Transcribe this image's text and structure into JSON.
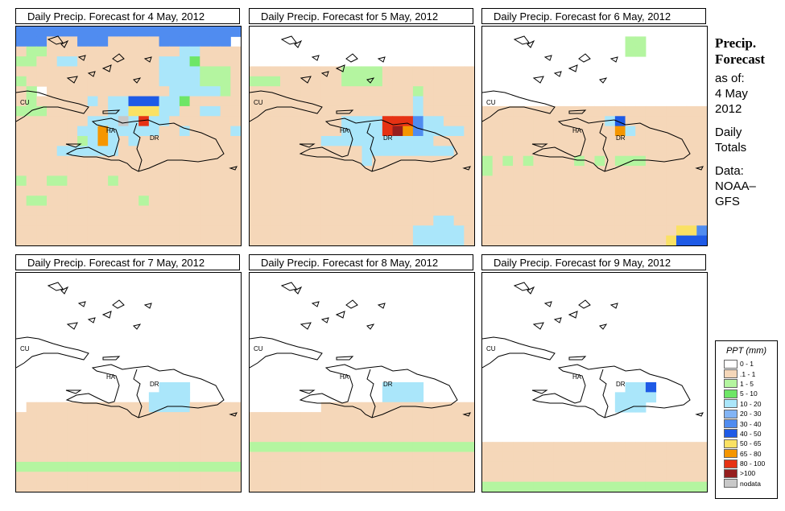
{
  "panels": [
    {
      "title": "Daily Precip. Forecast for  4 May, 2012"
    },
    {
      "title": "Daily Precip. Forecast for  5 May, 2012"
    },
    {
      "title": "Daily Precip. Forecast for  6 May, 2012"
    },
    {
      "title": "Daily Precip. Forecast for  7 May, 2012"
    },
    {
      "title": "Daily Precip. Forecast for  8 May, 2012"
    },
    {
      "title": "Daily Precip. Forecast for  9 May, 2012"
    }
  ],
  "map_labels": {
    "cuba": "CU",
    "haiti": "HA",
    "dominican_republic": "DR"
  },
  "sidebar": {
    "title_line1": "Precip.",
    "title_line2": "Forecast",
    "as_of_label": "as of:",
    "date_line1": "4 May",
    "date_line2": "2012",
    "totals_line1": "Daily",
    "totals_line2": "Totals",
    "data_line1": "Data:",
    "data_line2": "NOAA–",
    "data_line3": "GFS"
  },
  "legend": {
    "title": "PPT (mm)",
    "items": [
      {
        "label": "0 - 1",
        "color": "#ffffff"
      },
      {
        "label": ".1 - 1",
        "color": "#f5d7b9"
      },
      {
        "label": "1 - 5",
        "color": "#b4f5a0"
      },
      {
        "label": "5 - 10",
        "color": "#6ee666"
      },
      {
        "label": "10 - 20",
        "color": "#aae6fa"
      },
      {
        "label": "20 - 30",
        "color": "#82b4f5"
      },
      {
        "label": "30 - 40",
        "color": "#508cf0"
      },
      {
        "label": "40 - 50",
        "color": "#1e5ae6"
      },
      {
        "label": "50 - 65",
        "color": "#fae164"
      },
      {
        "label": "65 - 80",
        "color": "#f59600"
      },
      {
        "label": "80 - 100",
        "color": "#e63214"
      },
      {
        "label": ">100",
        "color": "#961e1e"
      },
      {
        "label": "nodata",
        "color": "#c8c8c8"
      }
    ]
  },
  "grids": [
    [
      "6666666666666666666666",
      "666111666111116666666",
      "1221111111111111441111",
      "2211441111111144431111",
      "1111111111111144442221",
      "2111111111111144442221",
      "1201111111111114444421",
      "1211111414477744311111",
      "2221111114488844114411",
      "1111111444C4A441111111",
      "1111114494444411411114",
      "1111112494141111111111",
      "1111444444111111111111",
      "1111111111111111111111",
      "1111111111111111111111",
      "2112211112111111111111",
      "1111111111111111111111",
      "1221111111112111111111",
      "1111111111111111111111",
      "1111111111111111111111",
      "1111111111111111111111",
      "1111111111111111111111"
    ],
    [
      "0000000000000000000000",
      "0000000000000000000000",
      "0000000000000000000000",
      "0000000000000000000000",
      "1111111112222111111111",
      "2221111112222111111111",
      "1111111111111111211111",
      "1111111111111111411111",
      "1111111111111111411111",
      "1111111114444AAA644111",
      "1111111114444AB9644441",
      "1111111444444444441111",
      "1111111111144444444411",
      "1111111111141111111111",
      "1111111111111111111111",
      "1111111111111111111111",
      "1111111111111111111111",
      "1111111111111111111111",
      "1111111111111111111111",
      "1111111111111111114411",
      "1111111111111111444441",
      "1111111111111111444441"
    ],
    [
      "0000000000000000000000",
      "0000000000000022000000",
      "0000000000000022000000",
      "0000000000000000000000",
      "0000000000000000000000",
      "0000000000000000000000",
      "0000000000000000000000",
      "0000000000000000000000",
      "1111111111111111111111",
      "1111111111114711111111",
      "1111111111111941111111",
      "1111111111111111111111",
      "1111111111111111111111",
      "2121211112121222111111",
      "2111111111111111111111",
      "1111111111111111111111",
      "1111111111111111111111",
      "1111111111111111111111",
      "1111111111111111111111",
      "1111111111111111111111",
      "1111111111111111111886",
      "1111111111111111118777"
    ],
    [
      "0000000000000000000000",
      "0000000000000000000000",
      "0000000000000000000000",
      "0000000000000000000000",
      "0000000000000000000000",
      "0000000000000000000000",
      "0000000000000000000000",
      "0000000000000000000000",
      "0000000000000000000000",
      "0000000000000000000000",
      "0000000000000000000000",
      "0000000000000044400000",
      "0000000000000444400000",
      "0111111111111444411111",
      "1111111111111111111111",
      "1111111111111111111111",
      "1111111111111111111111",
      "1111111111111111111111",
      "1111111111111111111111",
      "2222222222222222222222",
      "1111111111111111111111",
      "1111111111111111111111"
    ],
    [
      "0000000000000000000000",
      "0000000000000000000000",
      "0000000000000000000000",
      "0000000000000000000000",
      "0000000000000000000000",
      "0000000000000000000000",
      "0000000000000000000000",
      "0000000000000000000000",
      "0000000000000000000000",
      "0000000000000000000000",
      "0000000000000000000000",
      "0000000000000444400000",
      "0000000000000444400000",
      "0000000111111111111111",
      "1111111111111111111111",
      "1111111111111111111111",
      "1111111111111111111111",
      "2222222222222222222222",
      "1111111111111111111111",
      "1111111111111111111111",
      "1111111111111111111111",
      "1111111111111111111111"
    ],
    [
      "0000000000000000000000",
      "0000000000000000000000",
      "0000000000000000000000",
      "0000000000000000000000",
      "0000000000000000000000",
      "0000000000000000000000",
      "0000000000000000000000",
      "0000000000000000000000",
      "0000000000000000000000",
      "0000000000000000000000",
      "0000000000000000000000",
      "0000000000000044700000",
      "0000000000000444400000",
      "0000000000000444000000",
      "0000000000000000000000",
      "0000000000000000000000",
      "0000000000000000000000",
      "1111111111111111111111",
      "1111111111111111111111",
      "1111111111111111111111",
      "1111111111111111111111",
      "2222222222222222222222"
    ]
  ]
}
